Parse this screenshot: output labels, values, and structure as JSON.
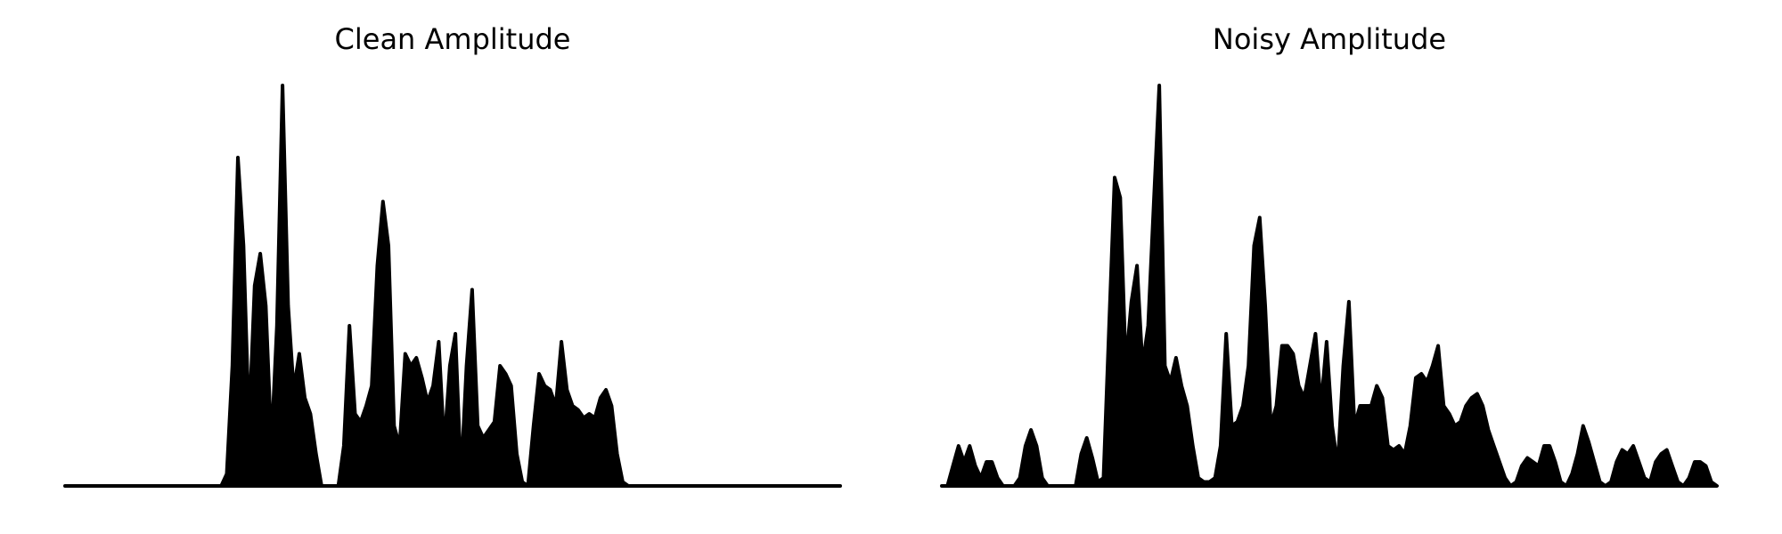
{
  "chart_data": [
    {
      "type": "area",
      "title": "Clean Amplitude",
      "color": "#000000",
      "ylim": [
        0,
        1
      ],
      "values": [
        0,
        0,
        0,
        0,
        0,
        0,
        0,
        0,
        0,
        0,
        0,
        0,
        0,
        0,
        0,
        0,
        0,
        0,
        0,
        0,
        0,
        0,
        0,
        0,
        0,
        0,
        0,
        0,
        0,
        0.03,
        0.3,
        0.82,
        0.6,
        0.15,
        0.5,
        0.58,
        0.45,
        0.1,
        0.4,
        1.0,
        0.45,
        0.24,
        0.33,
        0.22,
        0.18,
        0.08,
        0,
        0,
        0,
        0,
        0.1,
        0.4,
        0.18,
        0.16,
        0.2,
        0.25,
        0.55,
        0.71,
        0.6,
        0.15,
        0.1,
        0.33,
        0.3,
        0.32,
        0.27,
        0.21,
        0.25,
        0.36,
        0.1,
        0.3,
        0.38,
        0.02,
        0.3,
        0.49,
        0.15,
        0.12,
        0.14,
        0.16,
        0.3,
        0.28,
        0.25,
        0.08,
        0.01,
        0,
        0.15,
        0.28,
        0.25,
        0.24,
        0.2,
        0.36,
        0.24,
        0.2,
        0.19,
        0.17,
        0.18,
        0.17,
        0.22,
        0.24,
        0.2,
        0.08,
        0.01,
        0,
        0,
        0,
        0,
        0,
        0,
        0,
        0,
        0,
        0,
        0,
        0,
        0,
        0,
        0,
        0,
        0,
        0,
        0,
        0,
        0,
        0,
        0,
        0,
        0,
        0,
        0,
        0,
        0,
        0,
        0,
        0,
        0,
        0,
        0,
        0,
        0,
        0,
        0
      ]
    },
    {
      "type": "area",
      "title": "Noisy Amplitude",
      "color": "#000000",
      "ylim": [
        0,
        1
      ],
      "values": [
        0,
        0,
        0.05,
        0.1,
        0.06,
        0.1,
        0.05,
        0.02,
        0.06,
        0.06,
        0.02,
        0,
        0,
        0,
        0.02,
        0.1,
        0.14,
        0.1,
        0.02,
        0,
        0,
        0,
        0,
        0,
        0,
        0.08,
        0.12,
        0.07,
        0.01,
        0.02,
        0.4,
        0.77,
        0.72,
        0.3,
        0.46,
        0.55,
        0.3,
        0.4,
        0.7,
        1.0,
        0.3,
        0.26,
        0.32,
        0.25,
        0.2,
        0.1,
        0.02,
        0.01,
        0.01,
        0.02,
        0.1,
        0.38,
        0.15,
        0.16,
        0.2,
        0.3,
        0.6,
        0.67,
        0.45,
        0.15,
        0.2,
        0.35,
        0.35,
        0.33,
        0.25,
        0.22,
        0.3,
        0.38,
        0.2,
        0.36,
        0.15,
        0.05,
        0.3,
        0.46,
        0.15,
        0.2,
        0.2,
        0.2,
        0.25,
        0.22,
        0.1,
        0.09,
        0.1,
        0.08,
        0.15,
        0.27,
        0.28,
        0.26,
        0.3,
        0.35,
        0.2,
        0.18,
        0.15,
        0.16,
        0.2,
        0.22,
        0.23,
        0.2,
        0.14,
        0.1,
        0.06,
        0.02,
        0,
        0.01,
        0.05,
        0.07,
        0.06,
        0.05,
        0.1,
        0.1,
        0.06,
        0.01,
        0,
        0.03,
        0.08,
        0.15,
        0.11,
        0.06,
        0.01,
        0,
        0.01,
        0.06,
        0.09,
        0.08,
        0.1,
        0.06,
        0.02,
        0.01,
        0.06,
        0.08,
        0.09,
        0.05,
        0.01,
        0,
        0.02,
        0.06,
        0.06,
        0.05,
        0.01,
        0
      ]
    }
  ]
}
